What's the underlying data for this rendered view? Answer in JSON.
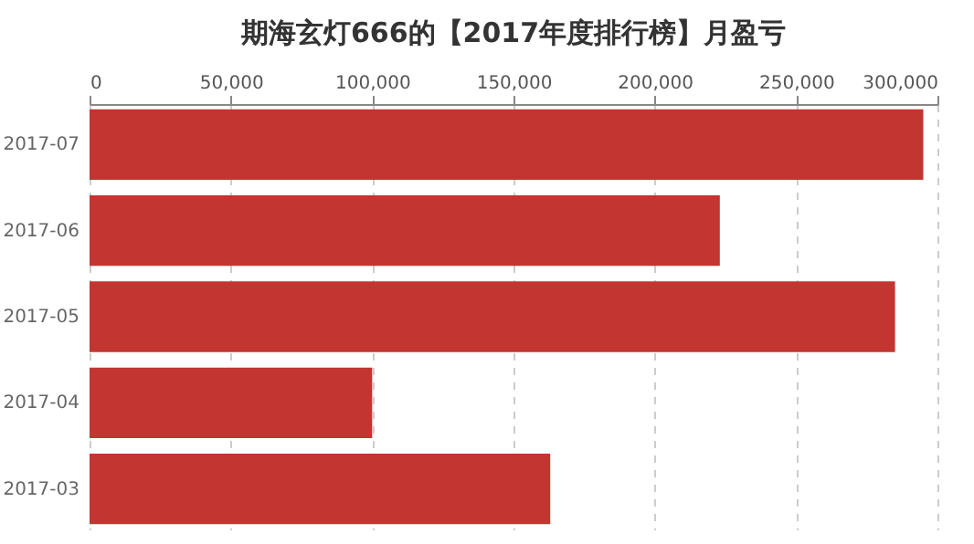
{
  "chart_data": {
    "type": "bar",
    "orientation": "horizontal",
    "title": "期海玄灯666的【2017年度排行榜】月盈亏",
    "categories": [
      "2017-07",
      "2017-06",
      "2017-05",
      "2017-04",
      "2017-03"
    ],
    "values": [
      295000,
      223000,
      285000,
      100000,
      163000
    ],
    "color": "#c23531",
    "xlim": [
      0,
      300000
    ],
    "xticks": [
      0,
      {
        "value": 50000,
        "label": "50,000"
      },
      {
        "value": 100000,
        "label": "100,000"
      },
      {
        "value": 150000,
        "label": "150,000"
      },
      {
        "value": 200000,
        "label": "200,000"
      },
      {
        "value": 250000,
        "label": "250,000"
      },
      {
        "value": 300000,
        "label": "300,000"
      }
    ],
    "grid": "x"
  }
}
